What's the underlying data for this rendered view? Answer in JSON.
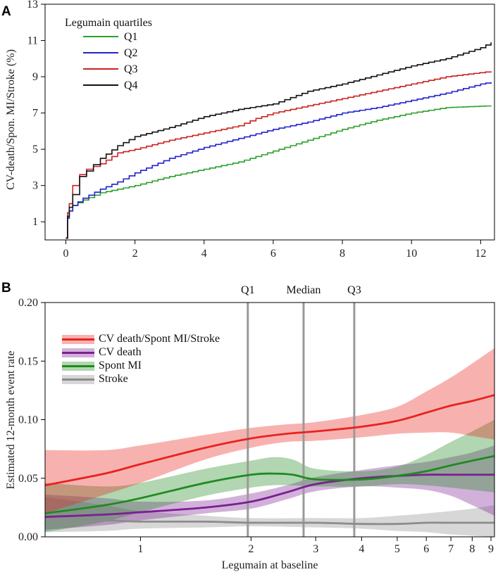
{
  "chart_data": [
    {
      "panel": "A",
      "type": "line",
      "title": "",
      "xlabel": "",
      "ylabel": "CV-death/Spon. MI/Stroke (%)",
      "xlim": [
        -0.6,
        12.4
      ],
      "ylim": [
        0,
        13
      ],
      "x_ticks": [
        0,
        2,
        4,
        6,
        8,
        10,
        12
      ],
      "y_ticks": [
        1,
        3,
        5,
        7,
        9,
        11,
        13
      ],
      "legend_title": "Legumain quartiles",
      "legend_position": "top-left",
      "series": [
        {
          "name": "Q1",
          "color": "#2ca02c",
          "points": [
            [
              0,
              0.1
            ],
            [
              0.05,
              1.2
            ],
            [
              0.1,
              1.6
            ],
            [
              0.2,
              1.9
            ],
            [
              0.5,
              2.2
            ],
            [
              1,
              2.6
            ],
            [
              1.5,
              2.8
            ],
            [
              2,
              3.0
            ],
            [
              3,
              3.5
            ],
            [
              4,
              3.9
            ],
            [
              5,
              4.3
            ],
            [
              6,
              4.9
            ],
            [
              7,
              5.5
            ],
            [
              8,
              6.1
            ],
            [
              9,
              6.6
            ],
            [
              10,
              7.0
            ],
            [
              11,
              7.3
            ],
            [
              12.3,
              7.4
            ]
          ]
        },
        {
          "name": "Q2",
          "color": "#2222cc",
          "points": [
            [
              0,
              0.1
            ],
            [
              0.05,
              1.2
            ],
            [
              0.1,
              1.6
            ],
            [
              0.2,
              1.9
            ],
            [
              0.5,
              2.3
            ],
            [
              1,
              2.8
            ],
            [
              1.5,
              3.2
            ],
            [
              2,
              3.7
            ],
            [
              3,
              4.5
            ],
            [
              4,
              5.1
            ],
            [
              5,
              5.6
            ],
            [
              6,
              6.1
            ],
            [
              7,
              6.5
            ],
            [
              8,
              7.0
            ],
            [
              9,
              7.3
            ],
            [
              10,
              7.7
            ],
            [
              11,
              8.1
            ],
            [
              12,
              8.6
            ],
            [
              12.3,
              8.7
            ]
          ]
        },
        {
          "name": "Q3",
          "color": "#cc2222",
          "points": [
            [
              0,
              0.1
            ],
            [
              0.05,
              1.5
            ],
            [
              0.1,
              2.0
            ],
            [
              0.2,
              3.0
            ],
            [
              0.4,
              3.6
            ],
            [
              0.6,
              3.9
            ],
            [
              1,
              4.2
            ],
            [
              1.5,
              4.8
            ],
            [
              2,
              5.0
            ],
            [
              3,
              5.5
            ],
            [
              4,
              5.9
            ],
            [
              5,
              6.3
            ],
            [
              5.5,
              6.7
            ],
            [
              6,
              7.0
            ],
            [
              7,
              7.4
            ],
            [
              8,
              7.8
            ],
            [
              9,
              8.2
            ],
            [
              10,
              8.6
            ],
            [
              11,
              9.0
            ],
            [
              12.3,
              9.3
            ]
          ]
        },
        {
          "name": "Q4",
          "color": "#111111",
          "points": [
            [
              0,
              0.1
            ],
            [
              0.05,
              1.3
            ],
            [
              0.1,
              1.8
            ],
            [
              0.2,
              2.5
            ],
            [
              0.4,
              3.5
            ],
            [
              0.6,
              3.8
            ],
            [
              1,
              4.5
            ],
            [
              1.5,
              5.2
            ],
            [
              2,
              5.7
            ],
            [
              3,
              6.2
            ],
            [
              4,
              6.8
            ],
            [
              5,
              7.2
            ],
            [
              6,
              7.5
            ],
            [
              7,
              8.2
            ],
            [
              8,
              8.6
            ],
            [
              9,
              9.1
            ],
            [
              10,
              9.6
            ],
            [
              11,
              10.0
            ],
            [
              12,
              10.6
            ],
            [
              12.3,
              10.9
            ]
          ]
        }
      ]
    },
    {
      "panel": "B",
      "type": "line",
      "title": "",
      "xlabel": "Legumain at baseline",
      "ylabel": "Estimated 12-month event rate",
      "x_scale": "log",
      "xlim": [
        0.55,
        9.2
      ],
      "ylim": [
        0,
        0.2
      ],
      "x_ticks": [
        1,
        2,
        3,
        4,
        5,
        6,
        7,
        8,
        9
      ],
      "y_ticks": [
        0.0,
        0.05,
        0.1,
        0.15,
        0.2
      ],
      "y_tick_labels": [
        "0.00",
        "0.05",
        "0.10",
        "0.15",
        "0.20"
      ],
      "legend_position": "top-left",
      "reference_lines": [
        {
          "label": "Q1",
          "x": 1.96
        },
        {
          "label": "Median",
          "x": 2.78
        },
        {
          "label": "Q3",
          "x": 3.82
        }
      ],
      "series": [
        {
          "name": "CV death/Spont MI/Stroke",
          "color": "#e8221e",
          "x": [
            0.55,
            0.8,
            1.0,
            1.5,
            2.0,
            2.5,
            3.0,
            4.0,
            5.0,
            6.0,
            7.0,
            8.0,
            9.2
          ],
          "y": [
            0.044,
            0.054,
            0.062,
            0.076,
            0.084,
            0.088,
            0.09,
            0.094,
            0.099,
            0.106,
            0.112,
            0.116,
            0.121
          ],
          "lower": [
            0.02,
            0.036,
            0.046,
            0.066,
            0.076,
            0.081,
            0.082,
            0.085,
            0.088,
            0.089,
            0.089,
            0.086,
            0.083
          ],
          "upper": [
            0.074,
            0.074,
            0.078,
            0.087,
            0.093,
            0.096,
            0.098,
            0.104,
            0.111,
            0.124,
            0.136,
            0.148,
            0.161
          ]
        },
        {
          "name": "CV death",
          "color": "#7b1f92",
          "x": [
            0.55,
            0.8,
            1.0,
            1.5,
            2.0,
            2.5,
            3.0,
            4.0,
            5.0,
            6.0,
            7.0,
            8.0,
            9.2
          ],
          "y": [
            0.017,
            0.019,
            0.021,
            0.025,
            0.03,
            0.038,
            0.045,
            0.05,
            0.052,
            0.053,
            0.053,
            0.053,
            0.053
          ],
          "lower": [
            0.006,
            0.01,
            0.014,
            0.02,
            0.024,
            0.032,
            0.039,
            0.043,
            0.042,
            0.04,
            0.035,
            0.027,
            0.018
          ],
          "upper": [
            0.036,
            0.033,
            0.03,
            0.031,
            0.037,
            0.044,
            0.051,
            0.057,
            0.061,
            0.064,
            0.068,
            0.072,
            0.078
          ]
        },
        {
          "name": "Spont MI",
          "color": "#1f8a1f",
          "x": [
            0.55,
            0.8,
            1.0,
            1.5,
            2.0,
            2.3,
            2.6,
            3.0,
            4.0,
            5.0,
            6.0,
            7.0,
            8.0,
            9.2
          ],
          "y": [
            0.02,
            0.027,
            0.033,
            0.046,
            0.053,
            0.054,
            0.053,
            0.049,
            0.049,
            0.052,
            0.056,
            0.061,
            0.065,
            0.069
          ],
          "lower": [
            0.004,
            0.013,
            0.021,
            0.035,
            0.042,
            0.044,
            0.044,
            0.043,
            0.043,
            0.045,
            0.044,
            0.042,
            0.04,
            0.038
          ],
          "upper": [
            0.046,
            0.043,
            0.046,
            0.058,
            0.065,
            0.068,
            0.066,
            0.058,
            0.056,
            0.06,
            0.07,
            0.081,
            0.09,
            0.1
          ]
        },
        {
          "name": "Stroke",
          "color": "#8c8c8c",
          "x": [
            0.55,
            0.8,
            1.0,
            1.5,
            2.0,
            3.0,
            4.0,
            5.0,
            6.0,
            7.0,
            8.0,
            9.2
          ],
          "y": [
            0.014,
            0.014,
            0.013,
            0.013,
            0.012,
            0.012,
            0.011,
            0.011,
            0.012,
            0.012,
            0.012,
            0.012
          ],
          "lower": [
            0.004,
            0.005,
            0.007,
            0.008,
            0.009,
            0.008,
            0.007,
            0.005,
            0.004,
            0.002,
            0.001,
            0.0
          ],
          "upper": [
            0.034,
            0.027,
            0.022,
            0.018,
            0.016,
            0.016,
            0.016,
            0.018,
            0.02,
            0.022,
            0.024,
            0.027
          ]
        }
      ]
    }
  ],
  "panel_labels": {
    "a": "A",
    "b": "B"
  },
  "legend_a_title": "Legumain quartiles"
}
